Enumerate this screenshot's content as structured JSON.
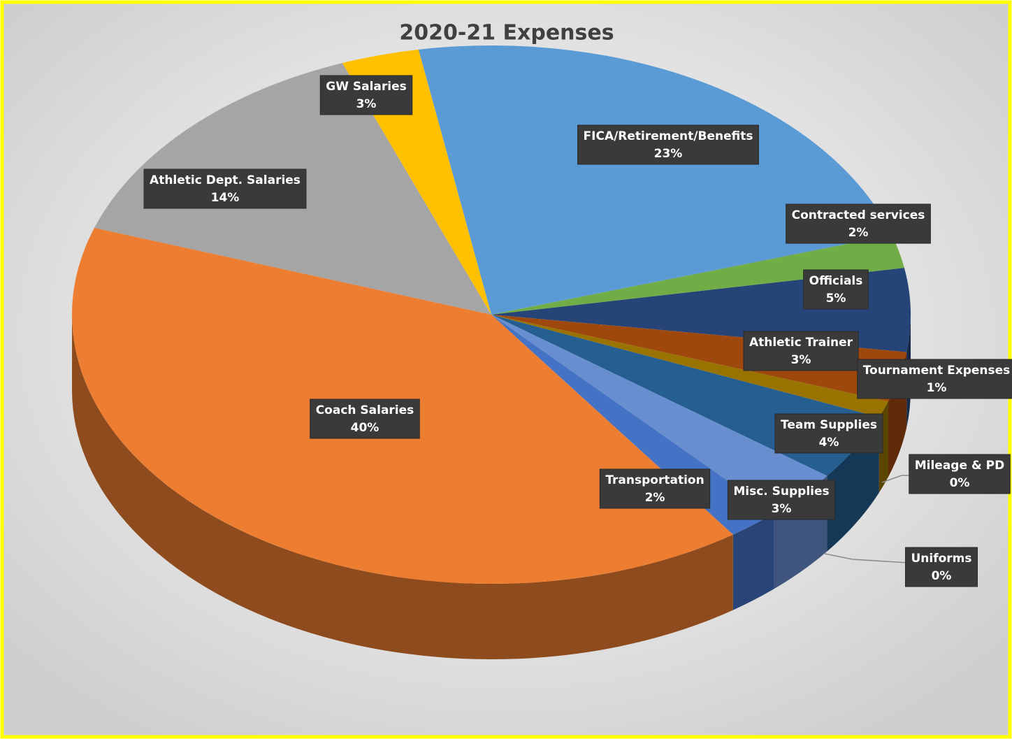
{
  "chart_data": {
    "type": "pie",
    "title": "2020-21 Expenses",
    "categories": [
      "FICA/Retirement/Benefits",
      "Contracted services",
      "Officials",
      "Athletic Trainer",
      "Tournament Expenses",
      "Mileage & PD",
      "Team Supplies",
      "Uniforms",
      "Misc. Supplies",
      "Transportation",
      "Coach Salaries",
      "Athletic Dept. Salaries",
      "GW Salaries"
    ],
    "values": [
      23,
      2,
      5,
      3,
      1,
      0,
      4,
      0,
      3,
      2,
      40,
      14,
      3
    ],
    "value_labels": [
      "23%",
      "2%",
      "5%",
      "3%",
      "1%",
      "0%",
      "4%",
      "0%",
      "3%",
      "2%",
      "40%",
      "14%",
      "3%"
    ],
    "colors": [
      "#5b9bd5",
      "#70ad47",
      "#264478",
      "#9e480e",
      "#997300",
      "#636363",
      "#255e91",
      "#43682b",
      "#698ed0",
      "#4472c4",
      "#ed7d31",
      "#a5a5a5",
      "#ffc000"
    ]
  }
}
